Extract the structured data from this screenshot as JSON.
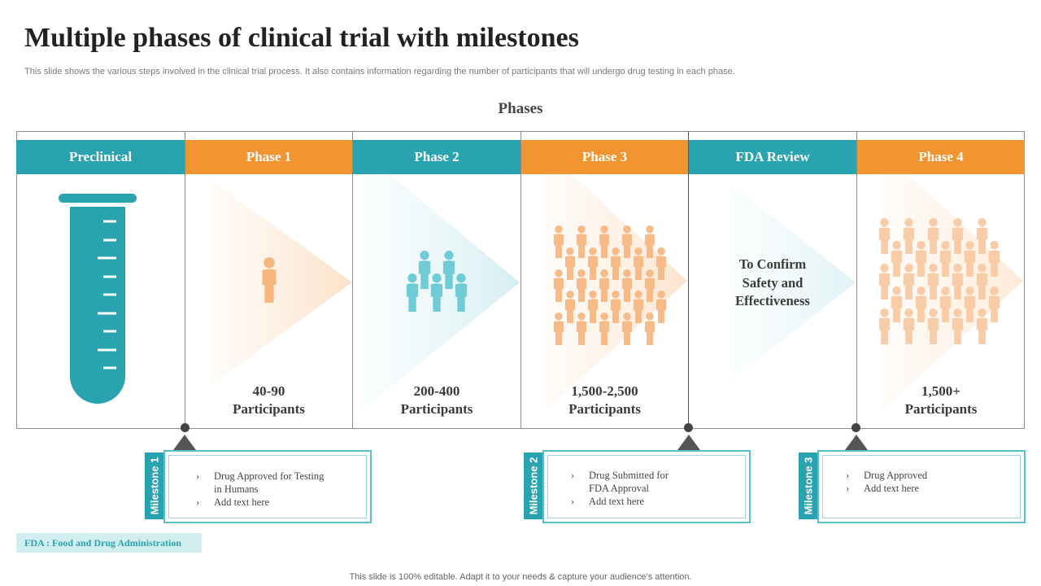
{
  "title": "Multiple phases of clinical trial with milestones",
  "subtitle": "This slide shows the various steps involved in the clinical trial process. It also contains information regarding the number of participants that will undergo drug testing in each phase.",
  "phases_heading": "Phases",
  "colors": {
    "teal": "#2aa3b0",
    "orange": "#f29430",
    "people_teal": "#6fcbd6",
    "people_orange": "#f6bb88"
  },
  "phases": [
    {
      "label": "Preclinical",
      "color": "teal",
      "icon": "test-tube-icon"
    },
    {
      "label": "Phase 1",
      "color": "orange",
      "icon": "person-icon",
      "participants_num": "40-90",
      "participants_label": "Participants"
    },
    {
      "label": "Phase 2",
      "color": "teal",
      "icon": "people-group-icon",
      "participants_num": "200-400",
      "participants_label": "Participants"
    },
    {
      "label": "Phase 3",
      "color": "orange",
      "icon": "crowd-icon",
      "participants_num": "1,500-2,500",
      "participants_label": "Participants"
    },
    {
      "label": "FDA Review",
      "color": "teal",
      "text_lines": [
        "To Confirm",
        "Safety and",
        "Effectiveness"
      ]
    },
    {
      "label": "Phase 4",
      "color": "orange",
      "icon": "crowd-icon",
      "participants_num": "1,500+",
      "participants_label": "Participants"
    }
  ],
  "milestones": [
    {
      "label": "Milestone 1",
      "lines": [
        "Drug Approved for Testing",
        "in Humans"
      ],
      "add_text": "Add text here"
    },
    {
      "label": "Milestone 2",
      "lines": [
        "Drug Submitted for",
        "FDA Approval"
      ],
      "add_text": "Add text here"
    },
    {
      "label": "Milestone 3",
      "lines": [
        "Drug Approved"
      ],
      "add_text": "Add text here"
    }
  ],
  "bullet": "›",
  "fda_note": "FDA : Food and Drug Administration",
  "footer": "This slide is 100% editable. Adapt it to your needs & capture your audience’s attention."
}
